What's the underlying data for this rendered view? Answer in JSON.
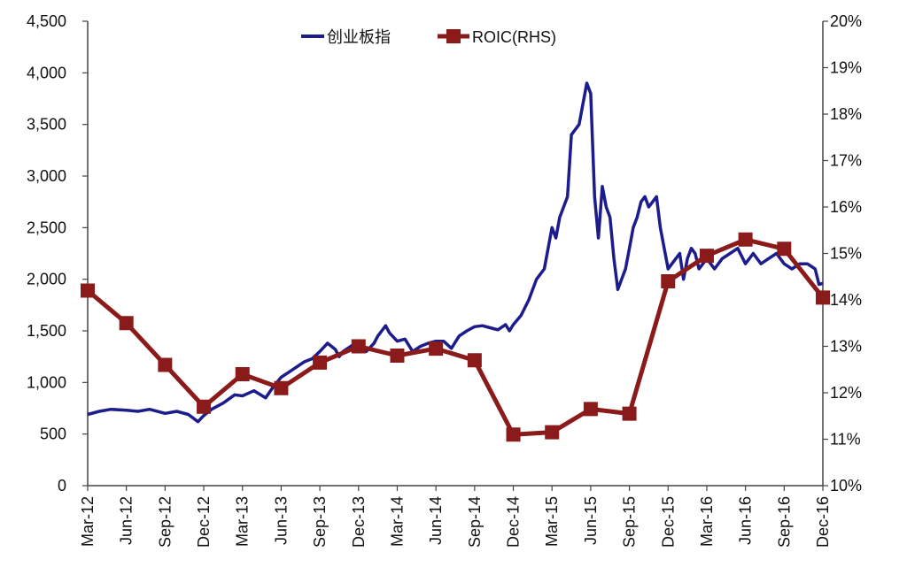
{
  "chart_data": {
    "type": "line",
    "title": "",
    "xlabel": "",
    "ylabel": "",
    "y2label": "",
    "grid": false,
    "legend_position": "top",
    "x_categories": [
      "Mar-12",
      "Jun-12",
      "Sep-12",
      "Dec-12",
      "Mar-13",
      "Jun-13",
      "Sep-13",
      "Dec-13",
      "Mar-14",
      "Jun-14",
      "Sep-14",
      "Dec-14",
      "Mar-15",
      "Jun-15",
      "Sep-15",
      "Dec-15",
      "Mar-16",
      "Jun-16",
      "Sep-16",
      "Dec-16"
    ],
    "y_left": {
      "min": 0,
      "max": 4500,
      "step": 500,
      "tick_labels": [
        "0",
        "500",
        "1,000",
        "1,500",
        "2,000",
        "2,500",
        "3,000",
        "3,500",
        "4,000",
        "4,500"
      ]
    },
    "y_right": {
      "min": 10,
      "max": 20,
      "step": 1,
      "unit": "%",
      "tick_labels": [
        "10%",
        "11%",
        "12%",
        "13%",
        "14%",
        "15%",
        "16%",
        "17%",
        "18%",
        "19%",
        "20%"
      ]
    },
    "series": [
      {
        "name": "创业板指",
        "axis": "left",
        "color": "#1c1c8c",
        "marker": "none",
        "x": [
          0,
          0.3,
          0.6,
          1.0,
          1.3,
          1.6,
          2.0,
          2.3,
          2.6,
          2.85,
          3.0,
          3.2,
          3.5,
          3.8,
          4.0,
          4.3,
          4.6,
          4.8,
          5.0,
          5.2,
          5.4,
          5.6,
          5.8,
          6.0,
          6.2,
          6.4,
          6.5,
          6.6,
          6.8,
          7.0,
          7.2,
          7.4,
          7.5,
          7.6,
          7.7,
          7.8,
          8.0,
          8.2,
          8.4,
          8.6,
          8.8,
          9.0,
          9.2,
          9.4,
          9.6,
          9.8,
          10.0,
          10.2,
          10.4,
          10.6,
          10.8,
          10.9,
          11.0,
          11.2,
          11.4,
          11.6,
          11.8,
          12.0,
          12.1,
          12.2,
          12.4,
          12.5,
          12.7,
          12.9,
          13.0,
          13.1,
          13.2,
          13.3,
          13.4,
          13.5,
          13.6,
          13.7,
          13.8,
          13.9,
          14.0,
          14.1,
          14.2,
          14.3,
          14.4,
          14.5,
          14.6,
          14.7,
          14.8,
          14.9,
          15.0,
          15.1,
          15.2,
          15.3,
          15.4,
          15.5,
          15.6,
          15.7,
          15.8,
          15.9,
          16.0,
          16.2,
          16.4,
          16.6,
          16.8,
          17.0,
          17.2,
          17.4,
          17.6,
          17.8,
          18.0,
          18.2,
          18.4,
          18.6,
          18.8,
          18.9,
          19.0
        ],
        "values": [
          690,
          720,
          740,
          730,
          720,
          740,
          700,
          720,
          690,
          620,
          680,
          740,
          800,
          880,
          870,
          920,
          850,
          960,
          1050,
          1100,
          1150,
          1200,
          1230,
          1300,
          1380,
          1320,
          1250,
          1300,
          1350,
          1400,
          1300,
          1380,
          1450,
          1500,
          1550,
          1480,
          1400,
          1420,
          1300,
          1350,
          1380,
          1400,
          1400,
          1330,
          1450,
          1500,
          1540,
          1550,
          1530,
          1510,
          1560,
          1500,
          1560,
          1650,
          1800,
          2000,
          2100,
          2500,
          2400,
          2600,
          2800,
          3400,
          3500,
          3900,
          3800,
          2800,
          2400,
          2900,
          2700,
          2600,
          2200,
          1900,
          2000,
          2100,
          2300,
          2500,
          2600,
          2750,
          2800,
          2700,
          2750,
          2800,
          2500,
          2300,
          2100,
          2150,
          2200,
          2250,
          2000,
          2200,
          2300,
          2250,
          2100,
          2150,
          2200,
          2100,
          2200,
          2250,
          2300,
          2150,
          2250,
          2150,
          2200,
          2250,
          2150,
          2100,
          2150,
          2150,
          2100,
          1950,
          1960
        ]
      },
      {
        "name": "ROIC(RHS)",
        "axis": "right",
        "color": "#8b1a1a",
        "marker": "square",
        "x": [
          0,
          1,
          2,
          3,
          4,
          5,
          6,
          7,
          8,
          9,
          10,
          11,
          12,
          13,
          14,
          15,
          16,
          17,
          18,
          19
        ],
        "values": [
          14.2,
          13.5,
          12.6,
          11.7,
          12.4,
          12.1,
          12.65,
          13.0,
          12.8,
          12.95,
          12.7,
          11.1,
          11.15,
          11.65,
          11.55,
          14.4,
          14.95,
          15.3,
          15.1,
          14.05
        ]
      }
    ]
  }
}
